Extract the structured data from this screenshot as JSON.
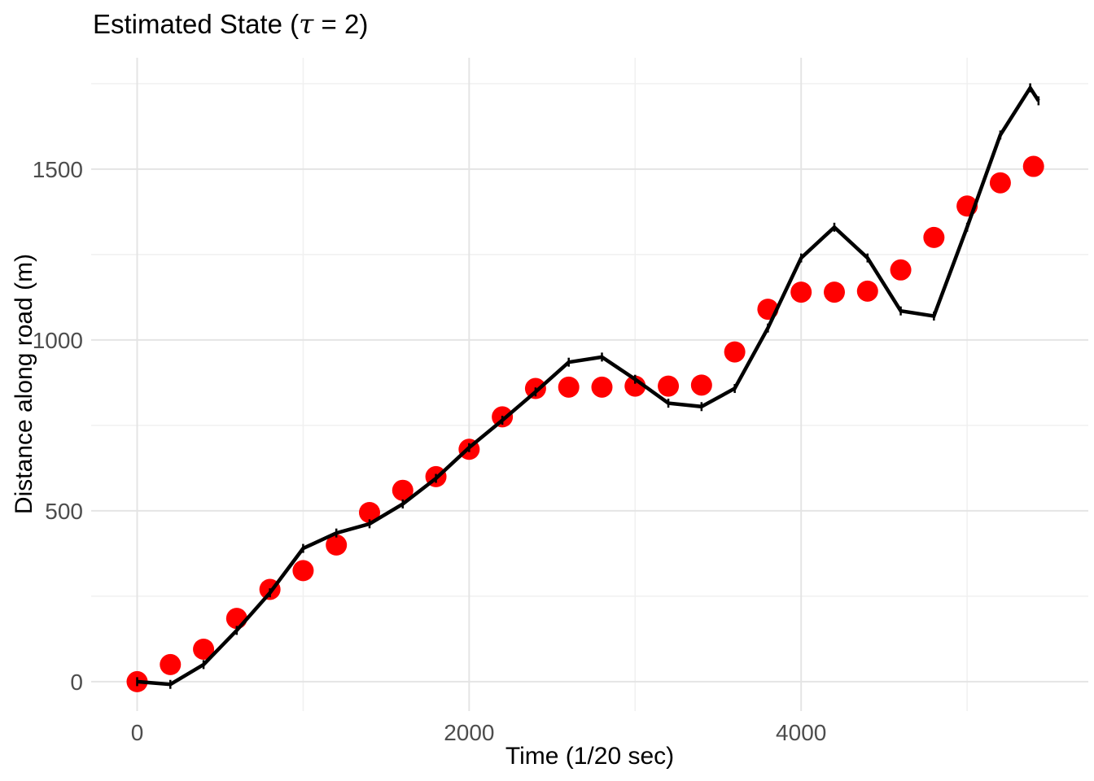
{
  "title": {
    "prefix": "Estimated State (",
    "tau": "τ",
    "suffix": " = 2)",
    "full": "Estimated State (τ = 2)"
  },
  "axes": {
    "x": {
      "label": "Time (1/20 sec)",
      "major_ticks": [
        0,
        2000,
        4000
      ],
      "minor_ticks": [
        1000,
        3000,
        5000
      ],
      "tick_labels": [
        "0",
        "2000",
        "4000"
      ]
    },
    "y": {
      "label": "Distance along road (m)",
      "major_ticks": [
        0,
        500,
        1000,
        1500
      ],
      "minor_ticks": [
        250,
        750,
        1250,
        1750
      ],
      "tick_labels": [
        "0",
        "500",
        "1000",
        "1500"
      ]
    }
  },
  "style": {
    "grid_major_color": "#E4E4E4",
    "grid_minor_color": "#F0F0F0",
    "tick_label_color": "#4D4D4D",
    "background": "#FFFFFF"
  },
  "chart_data": {
    "type": "line",
    "title": "Estimated State (τ = 2)",
    "xlabel": "Time (1/20 sec)",
    "ylabel": "Distance along road (m)",
    "xlim": [
      -277,
      5730
    ],
    "ylim": [
      -86,
      1826
    ],
    "grid": "major+minor",
    "legend": "none",
    "series": [
      {
        "name": "measurements",
        "type": "scatter",
        "color": "#FF0000",
        "point_radius": 13,
        "x": [
          0,
          200,
          400,
          600,
          800,
          1000,
          1200,
          1400,
          1600,
          1800,
          2000,
          2200,
          2400,
          2600,
          2800,
          3000,
          3200,
          3400,
          3600,
          3800,
          4000,
          4200,
          4400,
          4600,
          4800,
          5000,
          5200,
          5400
        ],
        "y": [
          0,
          50,
          95,
          185,
          270,
          325,
          400,
          495,
          560,
          600,
          680,
          775,
          858,
          862,
          862,
          865,
          865,
          868,
          965,
          1090,
          1140,
          1140,
          1143,
          1205,
          1300,
          1392,
          1460,
          1508
        ]
      },
      {
        "name": "estimated-state-line",
        "type": "line",
        "color": "#000000",
        "line_width": 4.5,
        "vertex_tick_height": 11,
        "x": [
          0,
          200,
          400,
          600,
          800,
          1000,
          1200,
          1400,
          1600,
          1800,
          2000,
          2200,
          2400,
          2600,
          2800,
          3000,
          3200,
          3400,
          3600,
          3800,
          4000,
          4200,
          4400,
          4600,
          4800,
          5000,
          5200,
          5380,
          5430
        ],
        "y": [
          0,
          -8,
          50,
          150,
          260,
          390,
          435,
          462,
          520,
          595,
          685,
          765,
          848,
          935,
          950,
          885,
          815,
          805,
          858,
          1035,
          1240,
          1330,
          1240,
          1085,
          1070,
          1330,
          1600,
          1738,
          1700
        ]
      }
    ]
  }
}
